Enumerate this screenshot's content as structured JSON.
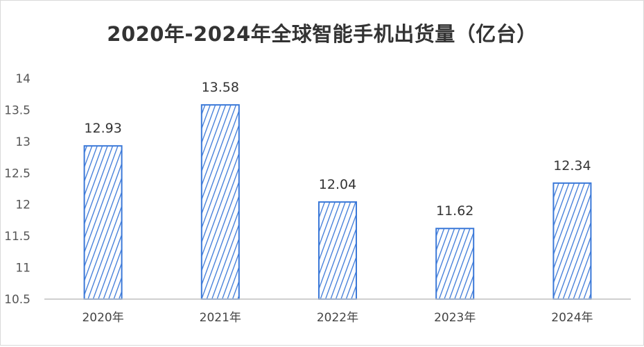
{
  "chart_data": {
    "type": "bar",
    "title": "2020年-2024年全球智能手机出货量（亿台）",
    "categories": [
      "2020年",
      "2021年",
      "2022年",
      "2023年",
      "2024年"
    ],
    "values": [
      12.93,
      13.58,
      12.04,
      11.62,
      12.34
    ],
    "value_labels": [
      "12.93",
      "13.58",
      "12.04",
      "11.62",
      "12.34"
    ],
    "ylim": [
      10.5,
      14
    ],
    "yticks": [
      "10.5",
      "11",
      "11.5",
      "12",
      "12.5",
      "13",
      "13.5",
      "14"
    ],
    "grid": false,
    "bar_color": "#3a78d8",
    "bar_pattern": "diagonal-hatch",
    "xlabel": "",
    "ylabel": ""
  }
}
